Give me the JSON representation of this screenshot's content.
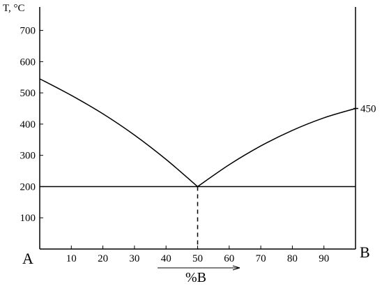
{
  "chart_data": {
    "type": "line",
    "title": "",
    "ylabel": "T, °C",
    "xlabel": "%B",
    "left_end_label": "A",
    "right_end_label": "B",
    "xlim": [
      0,
      100
    ],
    "ylim": [
      0,
      775
    ],
    "x_ticks": [
      10,
      20,
      30,
      40,
      50,
      60,
      70,
      80,
      90
    ],
    "y_ticks": [
      100,
      200,
      300,
      400,
      500,
      600,
      700
    ],
    "grid": false,
    "series": [
      {
        "x": [
          0,
          10,
          20,
          30,
          40,
          50
        ],
        "y": [
          545,
          492,
          433,
          365,
          287,
          200
        ]
      },
      {
        "x": [
          50,
          60,
          70,
          80,
          90,
          100
        ],
        "y": [
          200,
          270,
          330,
          380,
          420,
          450
        ]
      }
    ],
    "eutectic_line": {
      "y": 200,
      "x_start": 0,
      "x_end": 100
    },
    "eutectic_drop": {
      "x": 50,
      "y": 200
    },
    "annotations": [
      {
        "text": "450",
        "x": 100,
        "y": 450
      }
    ]
  }
}
